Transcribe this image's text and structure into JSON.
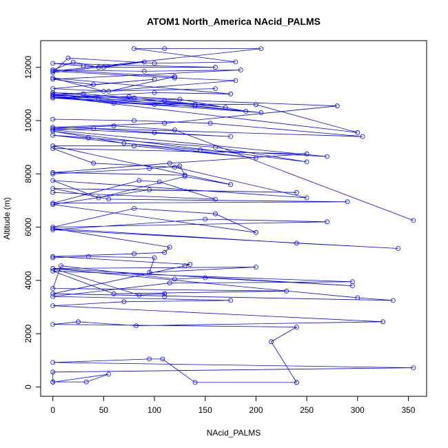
{
  "chart_data": {
    "type": "line",
    "title": "ATOM1 North_America NAcid_PALMS",
    "xlabel": "NAcid_PALMS",
    "ylabel": "Altitude (m)",
    "xlim": [
      -12,
      368
    ],
    "ylim": [
      -350,
      13000
    ],
    "xticks": [
      0,
      50,
      100,
      150,
      200,
      250,
      300,
      350
    ],
    "yticks": [
      0,
      2000,
      4000,
      6000,
      8000,
      10000,
      12000
    ],
    "series_color": "#0000ff",
    "marker": "open-circle",
    "grid": false,
    "legend": "none",
    "series": [
      {
        "x": [
          0,
          33,
          55,
          0,
          0,
          355,
          0,
          95,
          108,
          140,
          240,
          240,
          215,
          240,
          0,
          25,
          82,
          325,
          0,
          70,
          175,
          0,
          115,
          295,
          0,
          60,
          230,
          0,
          8,
          120,
          150,
          295,
          0,
          85,
          110,
          110
        ],
        "y": [
          190,
          190,
          480,
          180,
          560,
          720,
          920,
          1050,
          1050,
          170,
          170,
          170,
          1700,
          2250,
          2350,
          2450,
          2300,
          2450,
          3050,
          3200,
          3250,
          3400,
          3900,
          3950,
          4350,
          3500,
          3600,
          3700,
          4550,
          4050,
          4100,
          3800,
          4450,
          3450,
          3500,
          3400
        ]
      },
      {
        "x": [
          0,
          35,
          100,
          95,
          200,
          0,
          300,
          335,
          0,
          130,
          135,
          0,
          80,
          110,
          115,
          0,
          240,
          340,
          0,
          150,
          270,
          0,
          80,
          160,
          200,
          0,
          95,
          240,
          0,
          55,
          290,
          0,
          85,
          105,
          160,
          0
        ],
        "y": [
          4850,
          4900,
          4850,
          4300,
          4500,
          4450,
          3350,
          3250,
          3500,
          4550,
          4600,
          4900,
          5000,
          5050,
          5250,
          5950,
          5400,
          5200,
          5900,
          6300,
          6200,
          6000,
          6700,
          6500,
          5800,
          6850,
          7400,
          7300,
          7450,
          7050,
          6950,
          6900,
          7750,
          7700,
          7050,
          7300
        ]
      },
      {
        "x": [
          0,
          95,
          125,
          130,
          0,
          115,
          250,
          0,
          40,
          120,
          250,
          0,
          45,
          130,
          175,
          0,
          80,
          200,
          0,
          35,
          160,
          250,
          0,
          70,
          145,
          270,
          0,
          40,
          100,
          175,
          0,
          60,
          120,
          355
        ],
        "y": [
          8000,
          8200,
          8300,
          7950,
          8050,
          8400,
          8750,
          8950,
          8400,
          8250,
          7100,
          7750,
          7100,
          7900,
          7600,
          9050,
          9050,
          8600,
          9450,
          9350,
          9000,
          8450,
          9600,
          9150,
          8900,
          8650,
          9650,
          9700,
          9550,
          9400,
          9700,
          9800,
          9650,
          6250
        ]
      },
      {
        "x": [
          0,
          80,
          155,
          305,
          0,
          110,
          280,
          0,
          60,
          200,
          300,
          0,
          100,
          140,
          205,
          0,
          75,
          125,
          190,
          0,
          45,
          110,
          170,
          0,
          30,
          80,
          140,
          0,
          100,
          175,
          0,
          50,
          160
        ],
        "y": [
          10050,
          10000,
          9900,
          9400,
          9750,
          9900,
          10550,
          10950,
          10650,
          10600,
          9550,
          10900,
          10600,
          10550,
          10300,
          10850,
          10900,
          10800,
          10350,
          11000,
          10800,
          10750,
          10500,
          11050,
          11000,
          10850,
          10600,
          10850,
          11050,
          11000,
          11600,
          11100,
          11200
        ]
      },
      {
        "x": [
          0,
          90,
          185,
          0,
          40,
          100,
          0,
          55,
          120,
          0,
          20,
          45,
          160,
          0,
          30,
          50,
          90,
          0,
          15,
          100,
          180,
          80,
          110,
          205,
          0,
          120,
          180,
          0
        ],
        "y": [
          11900,
          11850,
          11900,
          11550,
          11350,
          11550,
          11200,
          11100,
          11650,
          11900,
          12200,
          12000,
          12000,
          12150,
          12050,
          12000,
          12200,
          11800,
          12350,
          12150,
          12200,
          12700,
          12700,
          12700,
          11850,
          11600,
          11500,
          10950
        ]
      }
    ]
  }
}
